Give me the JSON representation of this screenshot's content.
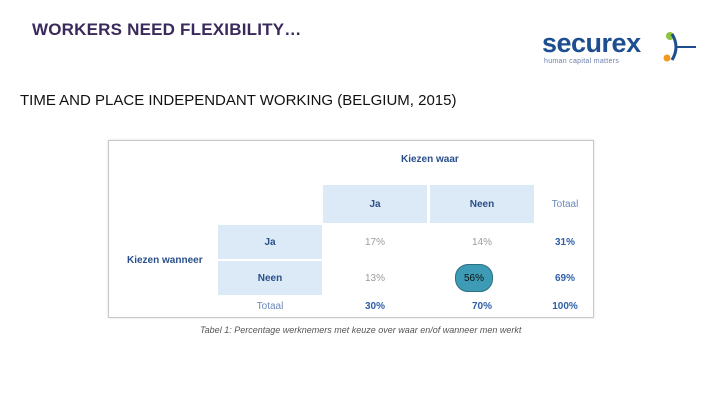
{
  "slide": {
    "title": "WORKERS NEED FLEXIBILITY…",
    "subtitle": "TIME AND PLACE INDEPENDANT WORKING (BELGIUM, 2015)"
  },
  "logo": {
    "word": "securex",
    "tagline": "human capital matters",
    "colors": {
      "text": "#1d4e8f",
      "dot_green": "#8cc43f",
      "dot_orange": "#f39a1e",
      "dot_blue": "#1d4e8f"
    }
  },
  "table": {
    "column_group": "Kiezen waar",
    "row_group": "Kiezen wanneer",
    "columns": [
      "Ja",
      "Neen",
      "Totaal"
    ],
    "rows": [
      {
        "label": "Ja",
        "values": [
          "17%",
          "14%",
          "31%"
        ]
      },
      {
        "label": "Neen",
        "values": [
          "13%",
          "",
          "69%"
        ]
      },
      {
        "label": "Totaal",
        "values": [
          "30%",
          "70%",
          "100%"
        ]
      }
    ],
    "highlight_value": "56%",
    "caption": "Tabel 1: Percentage werknemers met keuze over waar en/of wanneer men werkt"
  }
}
